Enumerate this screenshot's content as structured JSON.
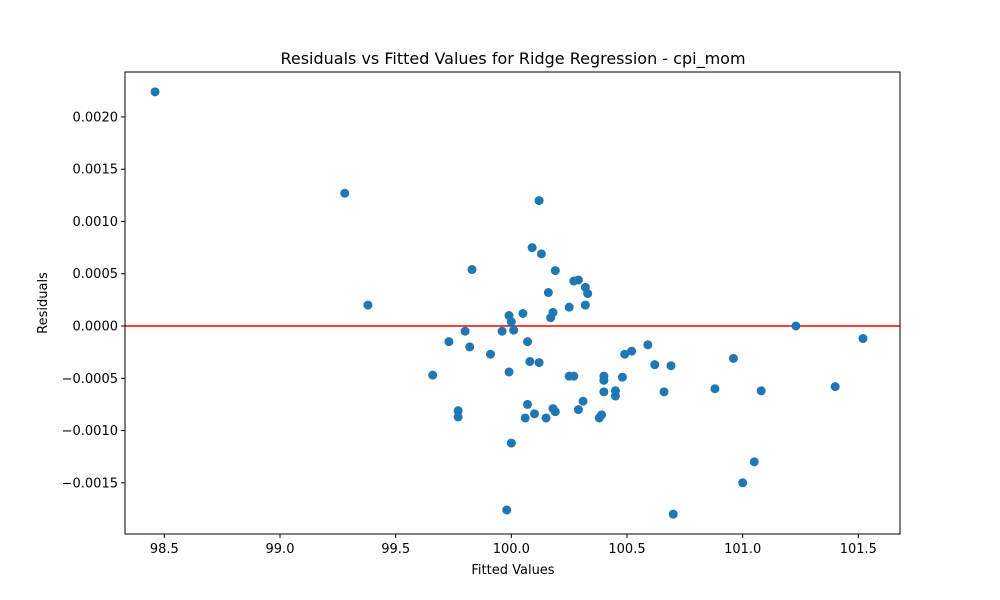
{
  "chart_data": {
    "type": "scatter",
    "title": "Residuals vs Fitted Values for Ridge Regression - cpi_mom",
    "xlabel": "Fitted Values",
    "ylabel": "Residuals",
    "xlim": [
      98.33,
      101.68
    ],
    "ylim": [
      -0.00199,
      0.00243
    ],
    "xticks": [
      98.5,
      99.0,
      99.5,
      100.0,
      100.5,
      101.0,
      101.5
    ],
    "xtick_labels": [
      "98.5",
      "99.0",
      "99.5",
      "100.0",
      "100.5",
      "101.0",
      "101.5"
    ],
    "yticks": [
      -0.0015,
      -0.001,
      -0.0005,
      0.0,
      0.0005,
      0.001,
      0.0015,
      0.002
    ],
    "ytick_labels": [
      "−0.0015",
      "−0.0010",
      "−0.0005",
      "0.0000",
      "0.0005",
      "0.0010",
      "0.0015",
      "0.0020"
    ],
    "reference_line": {
      "y": 0,
      "color": "#ff0000"
    },
    "grid": false,
    "point_color": "#1f77b4",
    "series": [
      {
        "x": [
          98.46,
          99.28,
          99.38,
          99.66,
          99.73,
          99.77,
          99.77,
          99.8,
          99.82,
          99.83,
          99.91,
          99.96,
          99.98,
          99.99,
          99.99,
          100.0,
          100.0,
          100.01,
          100.05,
          100.06,
          100.07,
          100.07,
          100.08,
          100.09,
          100.1,
          100.12,
          100.12,
          100.13,
          100.15,
          100.16,
          100.17,
          100.18,
          100.18,
          100.19,
          100.19,
          100.25,
          100.25,
          100.27,
          100.27,
          100.29,
          100.29,
          100.31,
          100.32,
          100.32,
          100.33,
          100.38,
          100.39,
          100.4,
          100.4,
          100.4,
          100.45,
          100.45,
          100.48,
          100.49,
          100.52,
          100.59,
          100.62,
          100.66,
          100.69,
          100.7,
          100.88,
          100.96,
          101.0,
          101.05,
          101.08,
          101.23,
          101.4,
          101.52
        ],
        "y": [
          0.00224,
          0.00127,
          0.0002,
          -0.00047,
          -0.00015,
          -0.00081,
          -0.00087,
          -5e-05,
          -0.0002,
          0.00054,
          -0.00027,
          -5e-05,
          -0.00176,
          0.0001,
          -0.00044,
          -0.00112,
          4e-05,
          -4e-05,
          0.00012,
          -0.00088,
          -0.00075,
          -0.00015,
          -0.00034,
          0.00075,
          -0.00084,
          0.0012,
          -0.00035,
          0.00069,
          -0.00088,
          0.00032,
          8e-05,
          0.00013,
          -0.00079,
          0.00053,
          -0.00082,
          0.00018,
          -0.00048,
          0.00043,
          -0.00048,
          0.00044,
          -0.0008,
          -0.00072,
          0.00037,
          0.0002,
          0.00031,
          -0.00088,
          -0.00085,
          -0.00048,
          -0.00052,
          -0.00063,
          -0.00062,
          -0.00067,
          -0.00049,
          -0.00027,
          -0.00024,
          -0.00018,
          -0.00037,
          -0.00063,
          -0.00038,
          -0.0018,
          -0.0006,
          -0.00031,
          -0.0015,
          -0.0013,
          -0.00062,
          0.0,
          -0.00058,
          -0.00012
        ]
      }
    ]
  }
}
